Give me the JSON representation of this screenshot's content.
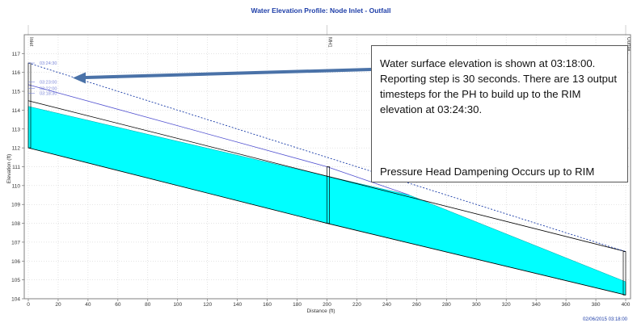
{
  "chart_data": {
    "type": "line",
    "title": "Water Elevation Profile:  Node Inlet - Outfall",
    "xlabel": "Distance (ft)",
    "ylabel": "Elevation (ft)",
    "xlim": [
      0,
      400
    ],
    "ylim": [
      104,
      118
    ],
    "x_ticks": [
      "0",
      "20",
      "40",
      "60",
      "80",
      "100",
      "120",
      "140",
      "160",
      "180",
      "200",
      "220",
      "240",
      "260",
      "280",
      "300",
      "320",
      "340",
      "360",
      "380",
      "400"
    ],
    "y_ticks": [
      "104",
      "105",
      "106",
      "107",
      "108",
      "109",
      "110",
      "111",
      "112",
      "113",
      "114",
      "115",
      "116",
      "117"
    ],
    "grid": true,
    "nodes": [
      {
        "name": "Inlet",
        "x": 0,
        "invert": 112.0,
        "rim": 116.5
      },
      {
        "name": "MH1",
        "x": 200,
        "invert": 108.0,
        "rim": 111.0
      },
      {
        "name": "Outfall",
        "x": 400,
        "invert": 104.2,
        "rim": 106.5
      }
    ],
    "series": [
      {
        "name": "Pipe invert",
        "color": "#000000",
        "x": [
          0,
          200,
          400
        ],
        "y": [
          112.0,
          108.0,
          104.2
        ]
      },
      {
        "name": "Pipe crown",
        "color": "#000000",
        "x": [
          0,
          200,
          400
        ],
        "y": [
          114.5,
          110.5,
          106.5
        ]
      },
      {
        "name": "Water surface 03:18:00",
        "color": "#00ffff",
        "x": [
          0,
          200,
          255,
          400
        ],
        "y": [
          114.2,
          110.5,
          109.5,
          104.9
        ]
      },
      {
        "name": "HGL 03:24:30",
        "color": "#1a3ca8",
        "x": [
          0,
          400
        ],
        "y": [
          116.5,
          106.5
        ]
      },
      {
        "name": "HGL step",
        "color": "#5050d0",
        "x": [
          0,
          200,
          255
        ],
        "y": [
          115.35,
          111.0,
          109.5
        ]
      }
    ],
    "timestep_labels": [
      {
        "label": "03:24:30",
        "y": 116.5
      },
      {
        "label": "03:23:00",
        "y": 115.5
      },
      {
        "label": "03:22:00",
        "y": 115.15
      },
      {
        "label": "03:18:30",
        "y": 114.9
      }
    ],
    "date_stamp": "02/06/2015 03:18:00"
  },
  "callout": {
    "text": "Water surface elevation is shown at 03:18:00. Reporting step is 30 seconds.  There are 13 output timesteps for the PH to build up to the RIM elevation at 03:24:30.",
    "note": "Pressure Head Dampening Occurs up to RIM"
  },
  "colors": {
    "title": "#1e3ea8",
    "water": "#00ffff",
    "hgl": "#1a3ca8",
    "grid": "#c8c8c8",
    "arrow": "#4a72a8"
  }
}
